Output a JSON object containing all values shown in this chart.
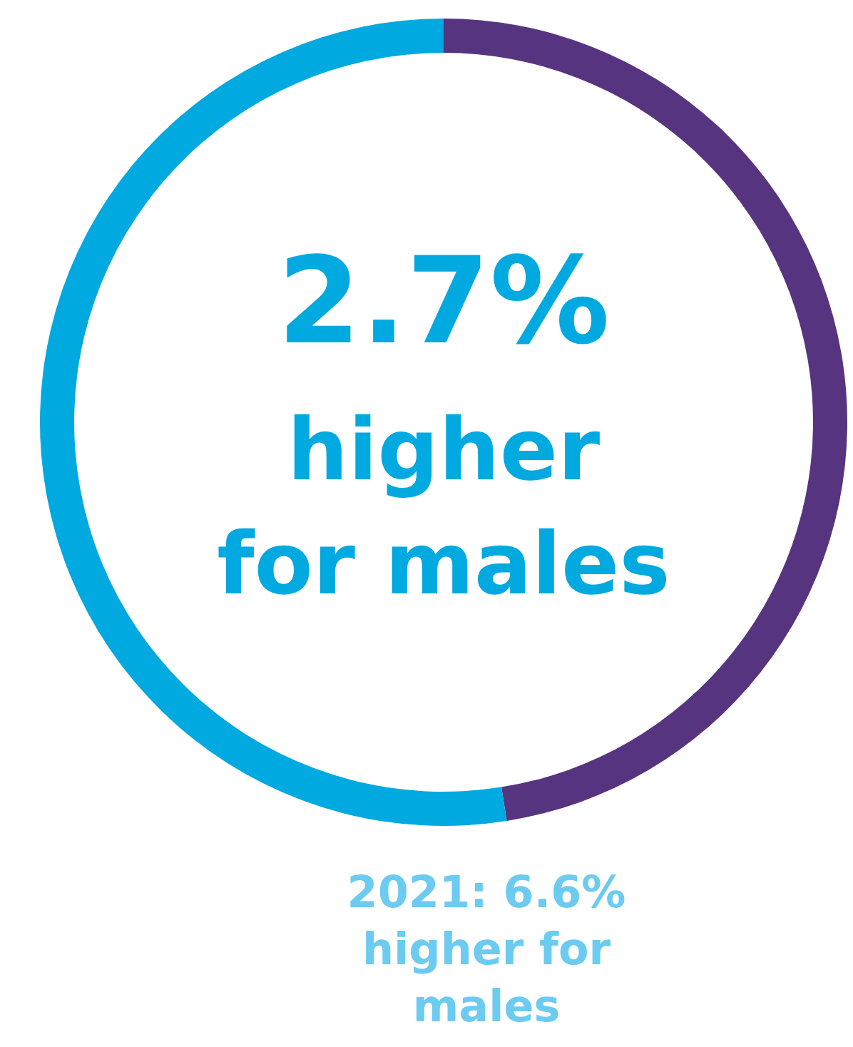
{
  "chart_data": {
    "type": "donut",
    "categories": [
      null,
      null
    ],
    "values": [
      47.5,
      52.5
    ],
    "colors": [
      "#56347f",
      "#00a9e0"
    ],
    "annotations": [
      "2.7%",
      "higher for males",
      "2021: 6.6% higher for males"
    ]
  }
}
